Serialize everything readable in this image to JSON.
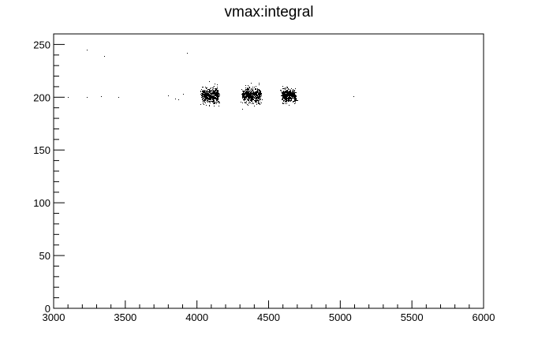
{
  "chart_data": {
    "type": "scatter",
    "title": "vmax:integral",
    "xlabel": "",
    "ylabel": "",
    "xlim": [
      3000,
      6000
    ],
    "ylim": [
      0,
      260
    ],
    "x_ticks": [
      3000,
      3500,
      4000,
      4500,
      5000,
      5500,
      6000
    ],
    "y_ticks": [
      0,
      50,
      100,
      150,
      200,
      250
    ],
    "x_tick_labels": [
      "3000",
      "3500",
      "4000",
      "4500",
      "5000",
      "5500",
      "6000"
    ],
    "y_tick_labels": [
      "0",
      "50",
      "100",
      "150",
      "200",
      "250"
    ],
    "grid": false,
    "legend": "none",
    "marker_color": "#000000",
    "clusters": [
      {
        "x_center": 4090,
        "x_spread": 55,
        "y_center": 202,
        "y_spread": 3.5,
        "count": 620
      },
      {
        "x_center": 4380,
        "x_spread": 60,
        "y_center": 202,
        "y_spread": 3.5,
        "count": 620
      },
      {
        "x_center": 4640,
        "x_spread": 45,
        "y_center": 202,
        "y_spread": 3.0,
        "count": 520
      }
    ],
    "outliers": [
      [
        3100,
        200
      ],
      [
        3230,
        200
      ],
      [
        3330,
        201
      ],
      [
        3450,
        200
      ],
      [
        3230,
        245
      ],
      [
        3350,
        239
      ],
      [
        3930,
        242
      ],
      [
        3800,
        202
      ],
      [
        3850,
        199
      ],
      [
        3870,
        198
      ],
      [
        3900,
        203
      ],
      [
        5090,
        201
      ],
      [
        4150,
        195
      ],
      [
        4400,
        210
      ],
      [
        4700,
        197
      ]
    ]
  }
}
